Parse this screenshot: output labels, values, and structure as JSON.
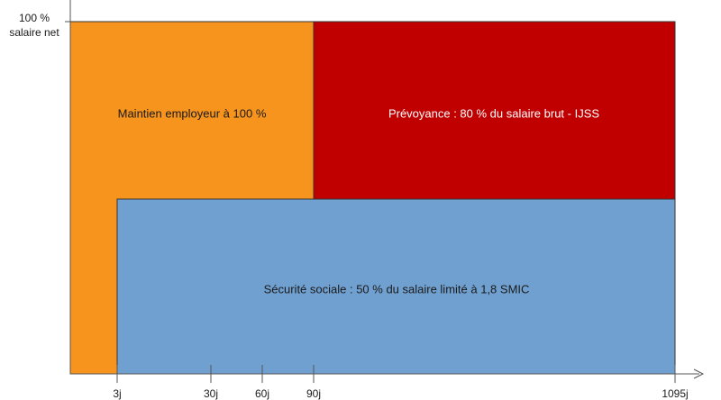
{
  "y_axis": {
    "top_label_line1": "100 %",
    "top_label_line2": "salaire net"
  },
  "regions": {
    "employer": {
      "label": "Maintien employeur à 100 %",
      "color": "#f7941d"
    },
    "prevoyance": {
      "label": "Prévoyance : 80 % du salaire brut - IJSS",
      "color": "#c00000"
    },
    "securite_sociale": {
      "label": "Sécurité sociale : 50 % du salaire limité à 1,8 SMIC",
      "color": "#70a0d0"
    }
  },
  "x_ticks": [
    "3j",
    "30j",
    "60j",
    "90j",
    "1095j"
  ],
  "colors": {
    "axis": "#555555",
    "outline": "#333333"
  }
}
